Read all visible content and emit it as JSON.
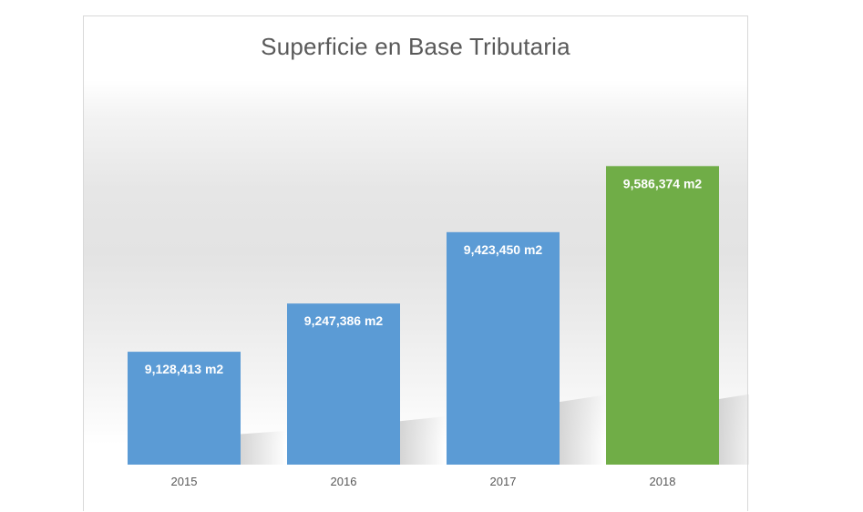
{
  "chart_data": {
    "type": "bar",
    "title": "Superficie en Base Tributaria",
    "categories": [
      "2015",
      "2016",
      "2017",
      "2018"
    ],
    "values": [
      9128413,
      9247386,
      9423450,
      9586374
    ],
    "data_labels": [
      "9,128,413 m2",
      "9,247,386 m2",
      "9,423,450 m2",
      "9,586,374 m2"
    ],
    "colors": [
      "#5b9bd5",
      "#5b9bd5",
      "#5b9bd5",
      "#70ad47"
    ],
    "ylim": [
      8850000,
      9650000
    ],
    "xlabel": "",
    "ylabel": "",
    "grid": false,
    "legend": "none"
  }
}
